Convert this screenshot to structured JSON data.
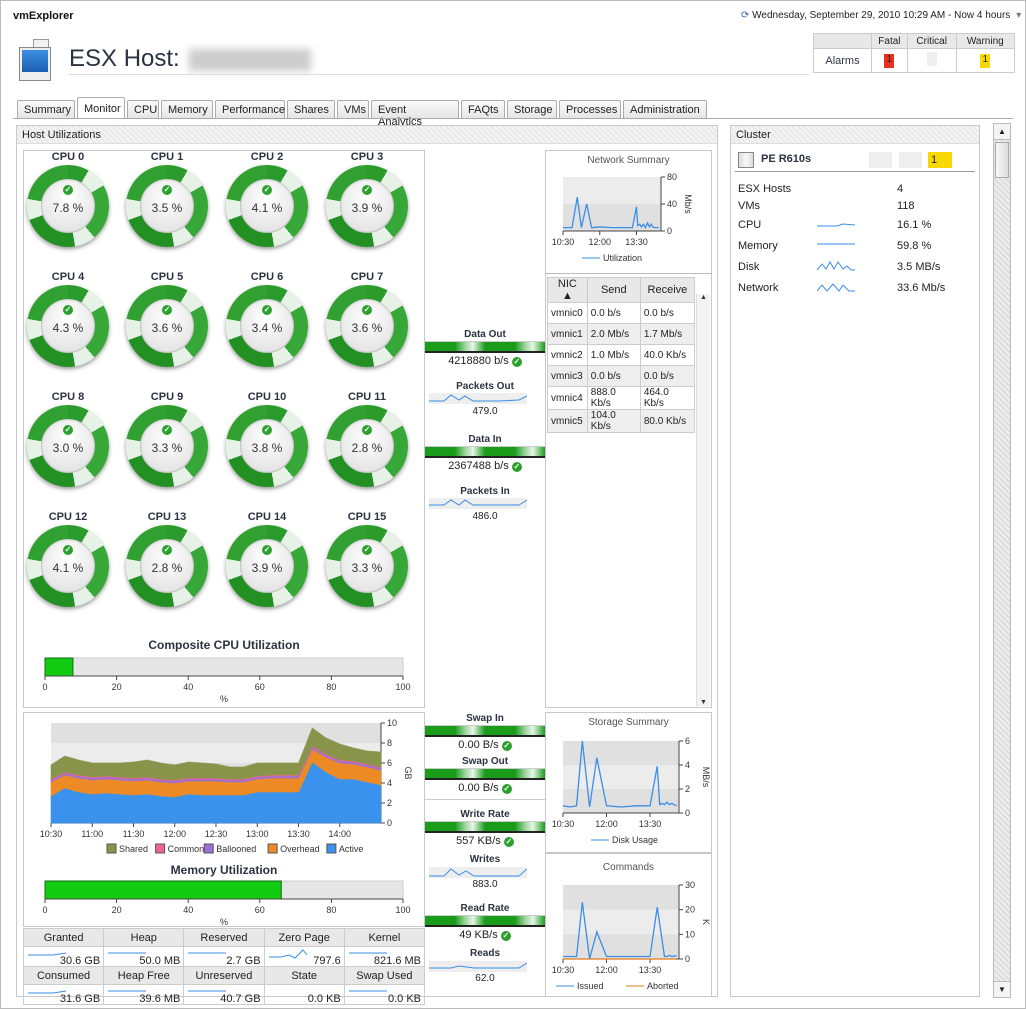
{
  "app": {
    "title": "vmExplorer"
  },
  "header": {
    "datetime": "Wednesday, September 29, 2010 10:29 AM - Now 4 hours",
    "host_label": "ESX Host:"
  },
  "alarms": {
    "row_label": "Alarms",
    "headers": [
      "Fatal",
      "Critical",
      "Warning"
    ],
    "values": [
      "1",
      "",
      "1"
    ],
    "colors": [
      "#e8321e",
      "#eeeeee",
      "#f7d800"
    ]
  },
  "tabs": [
    "Summary",
    "Monitor",
    "CPU",
    "Memory",
    "Performance",
    "Shares",
    "VMs",
    "Event Analytics",
    "FAQts",
    "Storage",
    "Processes",
    "Administration"
  ],
  "active_tab": "Monitor",
  "host_util": {
    "title": "Host Utilizations"
  },
  "cpus": [
    {
      "label": "CPU 0",
      "value": "7.8 %"
    },
    {
      "label": "CPU 1",
      "value": "3.5 %"
    },
    {
      "label": "CPU 2",
      "value": "4.1 %"
    },
    {
      "label": "CPU 3",
      "value": "3.9 %"
    },
    {
      "label": "CPU 4",
      "value": "4.3 %"
    },
    {
      "label": "CPU 5",
      "value": "3.6 %"
    },
    {
      "label": "CPU 6",
      "value": "3.4 %"
    },
    {
      "label": "CPU 7",
      "value": "3.6 %"
    },
    {
      "label": "CPU 8",
      "value": "3.0 %"
    },
    {
      "label": "CPU 9",
      "value": "3.3 %"
    },
    {
      "label": "CPU 10",
      "value": "3.8 %"
    },
    {
      "label": "CPU 11",
      "value": "2.8 %"
    },
    {
      "label": "CPU 12",
      "value": "4.1 %"
    },
    {
      "label": "CPU 13",
      "value": "2.8 %"
    },
    {
      "label": "CPU 14",
      "value": "3.9 %"
    },
    {
      "label": "CPU 15",
      "value": "3.3 %"
    }
  ],
  "metrics": {
    "data_out": {
      "label": "Data Out",
      "value": "4218880 b/s"
    },
    "packets_out": {
      "label": "Packets Out",
      "value": "479.0"
    },
    "data_in": {
      "label": "Data In",
      "value": "2367488 b/s"
    },
    "packets_in": {
      "label": "Packets In",
      "value": "486.0"
    },
    "swap_in": {
      "label": "Swap In",
      "value": "0.00 B/s"
    },
    "swap_out": {
      "label": "Swap Out",
      "value": "0.00 B/s"
    },
    "write_rate": {
      "label": "Write Rate",
      "value": "557 KB/s"
    },
    "writes": {
      "label": "Writes",
      "value": "883.0"
    },
    "read_rate": {
      "label": "Read Rate",
      "value": "49 KB/s"
    },
    "reads": {
      "label": "Reads",
      "value": "62.0"
    }
  },
  "nic_table": {
    "headers": [
      "NIC ▲",
      "Send",
      "Receive"
    ],
    "rows": [
      [
        "vmnic0",
        "0.0 b/s",
        "0.0 b/s"
      ],
      [
        "vmnic1",
        "2.0 Mb/s",
        "1.7 Mb/s"
      ],
      [
        "vmnic2",
        "1.0 Mb/s",
        "40.0 Kb/s"
      ],
      [
        "vmnic3",
        "0.0 b/s",
        "0.0 b/s"
      ],
      [
        "vmnic4",
        "888.0 Kb/s",
        "464.0 Kb/s"
      ],
      [
        "vmnic5",
        "104.0 Kb/s",
        "80.0 Kb/s"
      ]
    ]
  },
  "mem_table": {
    "headers1": [
      "Granted",
      "Heap",
      "Reserved",
      "Zero Page",
      "Kernel"
    ],
    "values1": [
      "30.6 GB",
      "50.0 MB",
      "2.7 GB",
      "797.6",
      "821.6 MB"
    ],
    "headers2": [
      "Consumed",
      "Heap Free",
      "Unreserved",
      "State",
      "Swap Used"
    ],
    "values2": [
      "31.6 GB",
      "39.6 MB",
      "40.7 GB",
      "0.0 KB",
      "0.0 KB"
    ]
  },
  "cluster": {
    "title": "Cluster",
    "name": "PE R610s",
    "alarm_values": [
      "",
      "",
      "1"
    ],
    "alarm_colors": [
      "#eeeeee",
      "#eeeeee",
      "#f7d800"
    ],
    "rows": [
      {
        "label": "ESX Hosts",
        "value": "4"
      },
      {
        "label": "VMs",
        "value": "118"
      },
      {
        "label": "CPU",
        "value": "16.1 %"
      },
      {
        "label": "Memory",
        "value": "59.8 %"
      },
      {
        "label": "Disk",
        "value": "3.5 MB/s"
      },
      {
        "label": "Network",
        "value": "33.6 Mb/s"
      }
    ]
  },
  "chart_data": [
    {
      "id": "composite",
      "type": "bar",
      "title": "Composite CPU Utilization",
      "value": 7.8,
      "xlim": [
        0,
        100
      ],
      "ticks": [
        0,
        20,
        40,
        60,
        80,
        100
      ],
      "xlabel": "%",
      "color": "#11cc11"
    },
    {
      "id": "memutil",
      "type": "bar",
      "title": "Memory Utilization",
      "value": 66,
      "xlim": [
        0,
        100
      ],
      "ticks": [
        0,
        20,
        40,
        60,
        80,
        100
      ],
      "xlabel": "%",
      "color": "#11cc11"
    },
    {
      "id": "memory",
      "type": "area",
      "stacked": true,
      "ylabel": "GB",
      "ylim": [
        0,
        10
      ],
      "yticks": [
        0,
        2,
        4,
        6,
        8,
        10
      ],
      "xticks": [
        "10:30",
        "11:00",
        "11:30",
        "12:00",
        "12:30",
        "13:00",
        "13:30",
        "14:00"
      ],
      "xlim": [
        "10:30",
        "14:30"
      ],
      "x": [
        "10:30",
        "10:40",
        "10:50",
        "11:00",
        "11:10",
        "11:20",
        "11:30",
        "11:40",
        "11:50",
        "12:00",
        "12:10",
        "12:20",
        "12:30",
        "12:40",
        "12:50",
        "13:00",
        "13:10",
        "13:20",
        "13:30",
        "13:40",
        "13:50",
        "14:00",
        "14:10",
        "14:20",
        "14:30"
      ],
      "series": [
        {
          "name": "Active",
          "color": "#3a92ec",
          "values": [
            2.7,
            3.5,
            3.1,
            2.9,
            3.0,
            2.9,
            2.8,
            2.9,
            2.7,
            2.6,
            2.9,
            2.8,
            2.8,
            2.8,
            2.8,
            3.1,
            3.1,
            3.1,
            3.1,
            6.1,
            5.1,
            4.4,
            4.4,
            4.1,
            3.8
          ]
        },
        {
          "name": "Overhead",
          "color": "#ee8a25",
          "values": [
            1.4,
            1.3,
            1.4,
            1.4,
            1.4,
            1.4,
            1.4,
            1.4,
            1.4,
            1.4,
            1.3,
            1.4,
            1.4,
            1.3,
            1.3,
            1.3,
            1.4,
            1.4,
            1.4,
            1.3,
            1.5,
            1.6,
            1.5,
            1.5,
            1.5
          ]
        },
        {
          "name": "Ballooned",
          "color": "#9a6fd6",
          "values": [
            0.2,
            0.2,
            0.2,
            0.2,
            0.2,
            0.2,
            0.2,
            0.2,
            0.2,
            0.2,
            0.2,
            0.2,
            0.2,
            0.2,
            0.2,
            0.2,
            0.2,
            0.2,
            0.2,
            0.2,
            0.2,
            0.2,
            0.2,
            0.2,
            0.2
          ]
        },
        {
          "name": "Common",
          "color": "#f06292",
          "values": [
            0.1,
            0.1,
            0.1,
            0.1,
            0.1,
            0.1,
            0.1,
            0.1,
            0.1,
            0.1,
            0.1,
            0.1,
            0.1,
            0.1,
            0.1,
            0.1,
            0.1,
            0.1,
            0.1,
            0.1,
            0.1,
            0.1,
            0.1,
            0.1,
            0.1
          ]
        },
        {
          "name": "Shared",
          "color": "#87944a",
          "values": [
            1.4,
            1.6,
            1.5,
            1.4,
            1.3,
            1.4,
            1.6,
            1.7,
            1.6,
            1.5,
            1.6,
            1.5,
            1.4,
            1.2,
            1.2,
            1.3,
            1.2,
            1.2,
            1.2,
            1.8,
            1.6,
            1.6,
            1.3,
            1.3,
            1.5
          ]
        }
      ],
      "legend": [
        "Shared",
        "Common",
        "Ballooned",
        "Overhead",
        "Active"
      ]
    },
    {
      "id": "network",
      "type": "line",
      "title": "Network Summary",
      "ylabel": "Mb/s",
      "ylim": [
        0,
        80
      ],
      "yticks": [
        0,
        40,
        80
      ],
      "xticks": [
        "10:30",
        "12:00",
        "13:30"
      ],
      "xlim": [
        "10:30",
        "14:30"
      ],
      "series": [
        {
          "name": "Utilization",
          "color": "#3a8ee6",
          "x": [
            "10:30",
            "10:45",
            "10:52",
            "11:05",
            "11:15",
            "11:28",
            "11:40",
            "12:00",
            "12:30",
            "13:00",
            "13:20",
            "13:30",
            "13:33",
            "13:38",
            "13:42",
            "13:47",
            "13:52",
            "13:57",
            "14:02",
            "14:06",
            "14:10",
            "14:15",
            "14:25"
          ],
          "values": [
            5,
            5,
            5,
            50,
            5,
            40,
            5,
            6,
            5,
            5,
            5,
            36,
            8,
            10,
            6,
            10,
            5,
            12,
            6,
            10,
            6,
            5,
            5
          ]
        }
      ]
    },
    {
      "id": "storage",
      "type": "line",
      "title": "Storage Summary",
      "ylabel": "MB/s",
      "ylim": [
        0,
        6
      ],
      "yticks": [
        0,
        2,
        4,
        6
      ],
      "xticks": [
        "10:30",
        "12:00",
        "13:30"
      ],
      "xlim": [
        "10:30",
        "14:30"
      ],
      "series": [
        {
          "name": "Disk Usage",
          "color": "#3a8ee6",
          "x": [
            "10:30",
            "10:45",
            "10:58",
            "11:10",
            "11:25",
            "11:40",
            "12:00",
            "12:30",
            "13:00",
            "13:20",
            "13:30",
            "13:45",
            "13:50",
            "13:55",
            "14:00",
            "14:05",
            "14:10",
            "14:15",
            "14:25"
          ],
          "values": [
            0.6,
            0.5,
            0.6,
            6,
            0.5,
            4.6,
            0.6,
            0.5,
            0.6,
            0.6,
            0.6,
            3.9,
            0.7,
            0.8,
            0.7,
            0.9,
            0.7,
            0.8,
            0.6
          ]
        }
      ]
    },
    {
      "id": "commands",
      "type": "line",
      "title": "Commands",
      "ylabel": "K",
      "ylim": [
        0,
        30
      ],
      "yticks": [
        0,
        10,
        20,
        30
      ],
      "xticks": [
        "10:30",
        "12:00",
        "13:30"
      ],
      "xlim": [
        "10:30",
        "14:30"
      ],
      "series": [
        {
          "name": "Issued",
          "color": "#3a8ee6",
          "x": [
            "10:30",
            "10:58",
            "11:10",
            "11:25",
            "11:40",
            "12:00",
            "12:30",
            "13:00",
            "13:30",
            "13:45",
            "14:00",
            "14:05",
            "14:10",
            "14:15",
            "14:25"
          ],
          "values": [
            1,
            1,
            23,
            0,
            11,
            1,
            1,
            1,
            1,
            21,
            1,
            1,
            1.5,
            1,
            1.3
          ]
        },
        {
          "name": "Aborted",
          "color": "#e07b1a",
          "x": [
            "10:30",
            "14:25"
          ],
          "values": [
            0,
            0
          ]
        }
      ]
    }
  ]
}
